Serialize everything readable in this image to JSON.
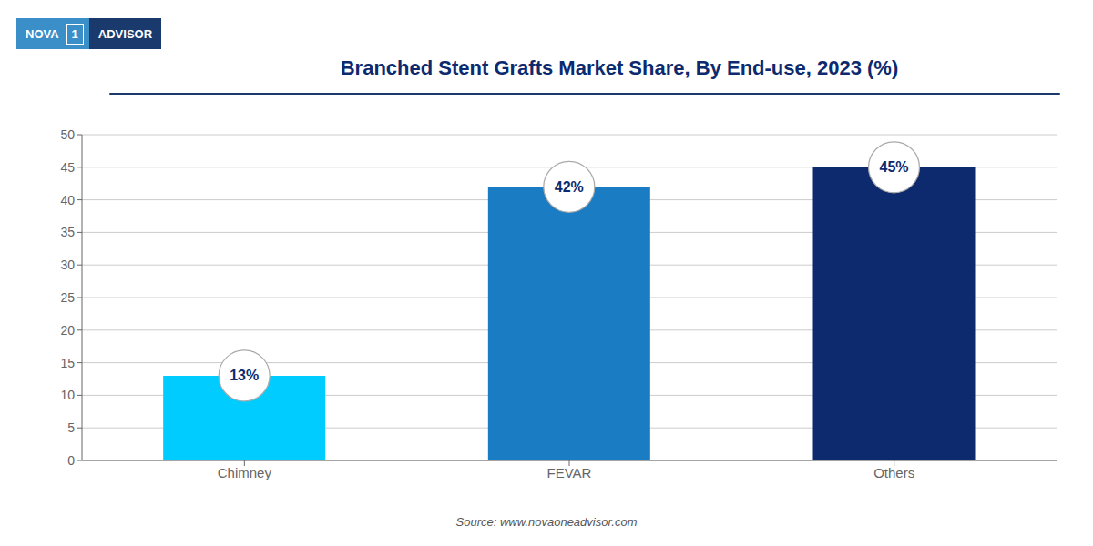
{
  "chart_data": {
    "type": "bar",
    "title": "Branched Stent Grafts Market Share, By End-use, 2023 (%)",
    "categories": [
      "Chimney",
      "FEVAR",
      "Others"
    ],
    "values": [
      13,
      42,
      45
    ],
    "value_labels": [
      "13%",
      "42%",
      "45%"
    ],
    "data_labels": true,
    "colors": [
      "#00CCFF",
      "#1A7DC4",
      "#0D2A6E"
    ],
    "ylim": [
      0,
      50
    ],
    "yticks": [
      0,
      5,
      10,
      15,
      20,
      25,
      30,
      35,
      40,
      45,
      50
    ],
    "grid": true,
    "logo_text": [
      "NOVA",
      "1",
      "ADVISOR"
    ],
    "source": "Source: www.novaoneadvisor.com"
  }
}
